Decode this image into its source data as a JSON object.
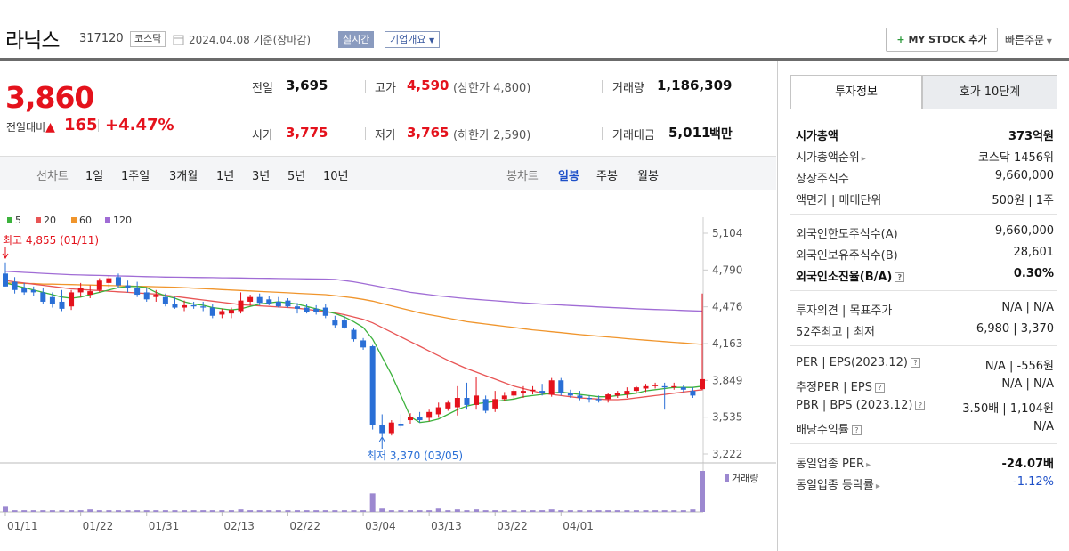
{
  "header": {
    "name": "라닉스",
    "code": "317120",
    "market": "코스닥",
    "date": "2024.04.08  기준(장마감)",
    "realtime": "실시간",
    "company": "기업개요",
    "mystock": "MY STOCK 추가",
    "quick_order": "빠른주문"
  },
  "price": {
    "current": "3,860",
    "change_label": "전일대비",
    "change": "165",
    "change_pct": "+4.47%",
    "prev_label": "전일",
    "prev": "3,695",
    "high_label": "고가",
    "high": "4,590",
    "upper_limit": "(상한가 4,800)",
    "volume_label": "거래량",
    "volume": "1,186,309",
    "open_label": "시가",
    "open": "3,775",
    "low_label": "저가",
    "low": "3,765",
    "lower_limit": "(하한가 2,590)",
    "amount_label": "거래대금",
    "amount": "5,011",
    "amount_unit": "백만"
  },
  "tabs": {
    "line_label": "선차트",
    "line": [
      "1일",
      "1주일",
      "3개월",
      "1년",
      "3년",
      "5년",
      "10년"
    ],
    "candle_label": "봉차트",
    "candle": [
      "일봉",
      "주봉",
      "월봉"
    ]
  },
  "chart_data": {
    "type": "candlestick",
    "legend": [
      "5",
      "20",
      "60",
      "120"
    ],
    "colors": {
      "ma5": "#3cb23c",
      "ma20": "#e85555",
      "ma60": "#f0952c",
      "ma120": "#a06cd5",
      "up": "#e4121c",
      "down": "#2a6fd6",
      "volume": "#9c88d0"
    },
    "yticks": [
      "5,104",
      "4,790",
      "4,476",
      "4,163",
      "3,849",
      "3,535",
      "3,222"
    ],
    "yrange": [
      3222,
      5104
    ],
    "xticks": [
      "01/11",
      "01/22",
      "01/31",
      "02/13",
      "02/22",
      "03/04",
      "03/13",
      "03/22",
      "04/01"
    ],
    "high_note": "최고 4,855 (01/11)",
    "low_note": "최저 3,370 (03/05)",
    "volume_label": "거래량",
    "candles": [
      {
        "o": 4760,
        "h": 4855,
        "l": 4650,
        "c": 4650
      },
      {
        "o": 4690,
        "h": 4730,
        "l": 4590,
        "c": 4620
      },
      {
        "o": 4640,
        "h": 4680,
        "l": 4580,
        "c": 4600
      },
      {
        "o": 4620,
        "h": 4650,
        "l": 4570,
        "c": 4600
      },
      {
        "o": 4600,
        "h": 4640,
        "l": 4500,
        "c": 4520
      },
      {
        "o": 4560,
        "h": 4600,
        "l": 4470,
        "c": 4500
      },
      {
        "o": 4520,
        "h": 4620,
        "l": 4440,
        "c": 4460
      },
      {
        "o": 4480,
        "h": 4620,
        "l": 4450,
        "c": 4600
      },
      {
        "o": 4600,
        "h": 4680,
        "l": 4560,
        "c": 4640
      },
      {
        "o": 4580,
        "h": 4660,
        "l": 4550,
        "c": 4610
      },
      {
        "o": 4620,
        "h": 4720,
        "l": 4600,
        "c": 4700
      },
      {
        "o": 4680,
        "h": 4740,
        "l": 4640,
        "c": 4720
      },
      {
        "o": 4730,
        "h": 4760,
        "l": 4640,
        "c": 4660
      },
      {
        "o": 4660,
        "h": 4700,
        "l": 4600,
        "c": 4640
      },
      {
        "o": 4640,
        "h": 4690,
        "l": 4560,
        "c": 4580
      },
      {
        "o": 4600,
        "h": 4640,
        "l": 4520,
        "c": 4540
      },
      {
        "o": 4560,
        "h": 4620,
        "l": 4520,
        "c": 4580
      },
      {
        "o": 4560,
        "h": 4590,
        "l": 4480,
        "c": 4500
      },
      {
        "o": 4500,
        "h": 4560,
        "l": 4460,
        "c": 4470
      },
      {
        "o": 4470,
        "h": 4530,
        "l": 4440,
        "c": 4490
      },
      {
        "o": 4490,
        "h": 4520,
        "l": 4460,
        "c": 4480
      },
      {
        "o": 4480,
        "h": 4520,
        "l": 4440,
        "c": 4470
      },
      {
        "o": 4470,
        "h": 4500,
        "l": 4380,
        "c": 4400
      },
      {
        "o": 4410,
        "h": 4460,
        "l": 4380,
        "c": 4440
      },
      {
        "o": 4420,
        "h": 4470,
        "l": 4380,
        "c": 4450
      },
      {
        "o": 4440,
        "h": 4600,
        "l": 4420,
        "c": 4530
      },
      {
        "o": 4520,
        "h": 4580,
        "l": 4490,
        "c": 4560
      },
      {
        "o": 4560,
        "h": 4590,
        "l": 4490,
        "c": 4510
      },
      {
        "o": 4540,
        "h": 4570,
        "l": 4490,
        "c": 4500
      },
      {
        "o": 4520,
        "h": 4560,
        "l": 4470,
        "c": 4480
      },
      {
        "o": 4530,
        "h": 4550,
        "l": 4470,
        "c": 4480
      },
      {
        "o": 4480,
        "h": 4510,
        "l": 4420,
        "c": 4460
      },
      {
        "o": 4470,
        "h": 4500,
        "l": 4420,
        "c": 4430
      },
      {
        "o": 4460,
        "h": 4490,
        "l": 4410,
        "c": 4430
      },
      {
        "o": 4470,
        "h": 4500,
        "l": 4380,
        "c": 4400
      },
      {
        "o": 4360,
        "h": 4400,
        "l": 4300,
        "c": 4320
      },
      {
        "o": 4360,
        "h": 4400,
        "l": 4290,
        "c": 4300
      },
      {
        "o": 4280,
        "h": 4300,
        "l": 4180,
        "c": 4200
      },
      {
        "o": 4190,
        "h": 4210,
        "l": 4110,
        "c": 4130
      },
      {
        "o": 4140,
        "h": 4150,
        "l": 3430,
        "c": 3470
      },
      {
        "o": 3470,
        "h": 3560,
        "l": 3370,
        "c": 3400
      },
      {
        "o": 3400,
        "h": 3510,
        "l": 3380,
        "c": 3490
      },
      {
        "o": 3480,
        "h": 3560,
        "l": 3440,
        "c": 3460
      },
      {
        "o": 3510,
        "h": 3570,
        "l": 3480,
        "c": 3540
      },
      {
        "o": 3540,
        "h": 3580,
        "l": 3490,
        "c": 3510
      },
      {
        "o": 3530,
        "h": 3600,
        "l": 3500,
        "c": 3580
      },
      {
        "o": 3560,
        "h": 3660,
        "l": 3530,
        "c": 3620
      },
      {
        "o": 3610,
        "h": 3680,
        "l": 3590,
        "c": 3660
      },
      {
        "o": 3620,
        "h": 3800,
        "l": 3550,
        "c": 3700
      },
      {
        "o": 3700,
        "h": 3830,
        "l": 3600,
        "c": 3640
      },
      {
        "o": 3640,
        "h": 3880,
        "l": 3600,
        "c": 3720
      },
      {
        "o": 3690,
        "h": 3720,
        "l": 3570,
        "c": 3590
      },
      {
        "o": 3610,
        "h": 3760,
        "l": 3580,
        "c": 3690
      },
      {
        "o": 3690,
        "h": 3750,
        "l": 3670,
        "c": 3720
      },
      {
        "o": 3720,
        "h": 3780,
        "l": 3690,
        "c": 3760
      },
      {
        "o": 3740,
        "h": 3800,
        "l": 3700,
        "c": 3760
      },
      {
        "o": 3760,
        "h": 3800,
        "l": 3730,
        "c": 3770
      },
      {
        "o": 3760,
        "h": 3820,
        "l": 3720,
        "c": 3740
      },
      {
        "o": 3730,
        "h": 3870,
        "l": 3710,
        "c": 3850
      },
      {
        "o": 3850,
        "h": 3870,
        "l": 3720,
        "c": 3740
      },
      {
        "o": 3740,
        "h": 3770,
        "l": 3700,
        "c": 3720
      },
      {
        "o": 3720,
        "h": 3760,
        "l": 3680,
        "c": 3700
      },
      {
        "o": 3700,
        "h": 3720,
        "l": 3660,
        "c": 3690
      },
      {
        "o": 3690,
        "h": 3720,
        "l": 3660,
        "c": 3680
      },
      {
        "o": 3690,
        "h": 3740,
        "l": 3660,
        "c": 3730
      },
      {
        "o": 3720,
        "h": 3760,
        "l": 3700,
        "c": 3740
      },
      {
        "o": 3730,
        "h": 3790,
        "l": 3700,
        "c": 3760
      },
      {
        "o": 3760,
        "h": 3800,
        "l": 3740,
        "c": 3790
      },
      {
        "o": 3780,
        "h": 3820,
        "l": 3750,
        "c": 3800
      },
      {
        "o": 3800,
        "h": 3830,
        "l": 3780,
        "c": 3810
      },
      {
        "o": 3800,
        "h": 3830,
        "l": 3600,
        "c": 3790
      },
      {
        "o": 3790,
        "h": 3830,
        "l": 3770,
        "c": 3800
      },
      {
        "o": 3790,
        "h": 3810,
        "l": 3750,
        "c": 3770
      },
      {
        "o": 3760,
        "h": 3790,
        "l": 3700,
        "c": 3720
      },
      {
        "o": 3775,
        "h": 4590,
        "l": 3765,
        "c": 3860
      }
    ],
    "ma5": [
      4680,
      4660,
      4640,
      4620,
      4600,
      4580,
      4560,
      4550,
      4560,
      4580,
      4600,
      4620,
      4640,
      4650,
      4650,
      4640,
      4600,
      4570,
      4550,
      4520,
      4500,
      4490,
      4470,
      4460,
      4450,
      4460,
      4480,
      4500,
      4510,
      4520,
      4510,
      4500,
      4480,
      4460,
      4440,
      4420,
      4390,
      4350,
      4300,
      4200,
      4050,
      3900,
      3720,
      3540,
      3490,
      3500,
      3520,
      3560,
      3600,
      3630,
      3650,
      3660,
      3670,
      3680,
      3690,
      3710,
      3720,
      3730,
      3740,
      3750,
      3740,
      3730,
      3720,
      3710,
      3710,
      3720,
      3730,
      3740,
      3760,
      3770,
      3780,
      3790,
      3790,
      3790,
      3800
    ],
    "ma20": [
      4700,
      4690,
      4680,
      4670,
      4660,
      4650,
      4640,
      4630,
      4625,
      4620,
      4615,
      4610,
      4605,
      4600,
      4595,
      4590,
      4585,
      4575,
      4565,
      4555,
      4545,
      4535,
      4525,
      4515,
      4505,
      4495,
      4490,
      4485,
      4480,
      4475,
      4470,
      4465,
      4455,
      4445,
      4435,
      4425,
      4410,
      4390,
      4370,
      4340,
      4300,
      4260,
      4220,
      4180,
      4140,
      4100,
      4060,
      4020,
      3985,
      3950,
      3920,
      3890,
      3860,
      3830,
      3800,
      3780,
      3760,
      3740,
      3730,
      3720,
      3710,
      3700,
      3695,
      3690,
      3685,
      3685,
      3690,
      3700,
      3710,
      3720,
      3730,
      3740,
      3750,
      3760,
      3770
    ],
    "ma60": [
      4680,
      4680,
      4675,
      4675,
      4670,
      4670,
      4668,
      4666,
      4664,
      4662,
      4660,
      4658,
      4656,
      4654,
      4652,
      4650,
      4648,
      4646,
      4644,
      4640,
      4636,
      4632,
      4628,
      4624,
      4620,
      4616,
      4612,
      4608,
      4604,
      4600,
      4596,
      4592,
      4588,
      4584,
      4580,
      4572,
      4562,
      4552,
      4540,
      4525,
      4505,
      4485,
      4465,
      4445,
      4425,
      4410,
      4395,
      4380,
      4365,
      4350,
      4340,
      4330,
      4320,
      4310,
      4300,
      4290,
      4280,
      4272,
      4264,
      4256,
      4248,
      4240,
      4233,
      4226,
      4219,
      4212,
      4205,
      4198,
      4192,
      4186,
      4180,
      4174,
      4168,
      4162,
      4156
    ],
    "ma120": [
      4780,
      4775,
      4770,
      4766,
      4762,
      4758,
      4754,
      4750,
      4748,
      4746,
      4744,
      4742,
      4740,
      4738,
      4736,
      4734,
      4732,
      4730,
      4729,
      4728,
      4727,
      4726,
      4725,
      4724,
      4723,
      4722,
      4721,
      4720,
      4719,
      4718,
      4717,
      4716,
      4715,
      4714,
      4713,
      4710,
      4700,
      4690,
      4675,
      4660,
      4645,
      4630,
      4615,
      4600,
      4590,
      4580,
      4570,
      4562,
      4554,
      4546,
      4540,
      4534,
      4528,
      4522,
      4516,
      4510,
      4505,
      4500,
      4496,
      4492,
      4488,
      4484,
      4480,
      4476,
      4472,
      4468,
      4464,
      4460,
      4457,
      4454,
      4451,
      4448,
      4445,
      4442,
      4440
    ],
    "volumes": [
      6,
      2,
      2,
      2,
      2,
      2,
      2,
      2,
      2,
      3,
      2,
      2,
      2,
      2,
      2,
      2,
      2,
      2,
      2,
      2,
      2,
      2,
      2,
      2,
      2,
      3,
      2,
      2,
      2,
      2,
      2,
      2,
      2,
      2,
      2,
      2,
      2,
      2,
      2,
      22,
      4,
      2,
      2,
      2,
      2,
      2,
      4,
      2,
      3,
      2,
      3,
      2,
      2,
      2,
      2,
      2,
      2,
      2,
      3,
      2,
      2,
      2,
      2,
      2,
      2,
      2,
      2,
      2,
      2,
      2,
      2,
      2,
      2,
      3,
      49
    ],
    "xtick_index": [
      0,
      8,
      15,
      23,
      30,
      38,
      45,
      52,
      59
    ]
  },
  "right": {
    "tab_active": "투자정보",
    "tab_inactive": "호가 10단계",
    "rows1": [
      {
        "k": "시가총액",
        "v": "373억원",
        "bold": true
      },
      {
        "k": "시가총액순위",
        "v": "코스닥 1456위",
        "arrow": true
      },
      {
        "k": "상장주식수",
        "v": "9,660,000"
      },
      {
        "k": "액면가 | 매매단위",
        "v": "500원 | 1주"
      }
    ],
    "rows2": [
      {
        "k": "외국인한도주식수(A)",
        "v": "9,660,000"
      },
      {
        "k": "외국인보유주식수(B)",
        "v": "28,601"
      },
      {
        "k": "외국인소진율(B/A)",
        "v": "0.30%",
        "bold": true,
        "help": true
      }
    ],
    "rows3": [
      {
        "k": "투자의견 | 목표주가",
        "v": "N/A | N/A"
      },
      {
        "k": "52주최고 | 최저",
        "v": "6,980 | 3,370"
      }
    ],
    "rows4": [
      {
        "k": "PER | EPS(2023.12)",
        "v": "N/A | -556원",
        "help": true
      },
      {
        "k": "추정PER | EPS",
        "v": "N/A | N/A",
        "help": true
      },
      {
        "k": "PBR | BPS (2023.12)",
        "v": "3.50배 | 1,104원",
        "help": true
      },
      {
        "k": "배당수익률",
        "v": "N/A",
        "help": true
      }
    ],
    "rows5": [
      {
        "k": "동일업종 PER",
        "v": "-24.07배",
        "arrow": true,
        "boldv": true
      },
      {
        "k": "동일업종 등락률",
        "v": "-1.12%",
        "arrow": true,
        "blue": true
      }
    ]
  }
}
